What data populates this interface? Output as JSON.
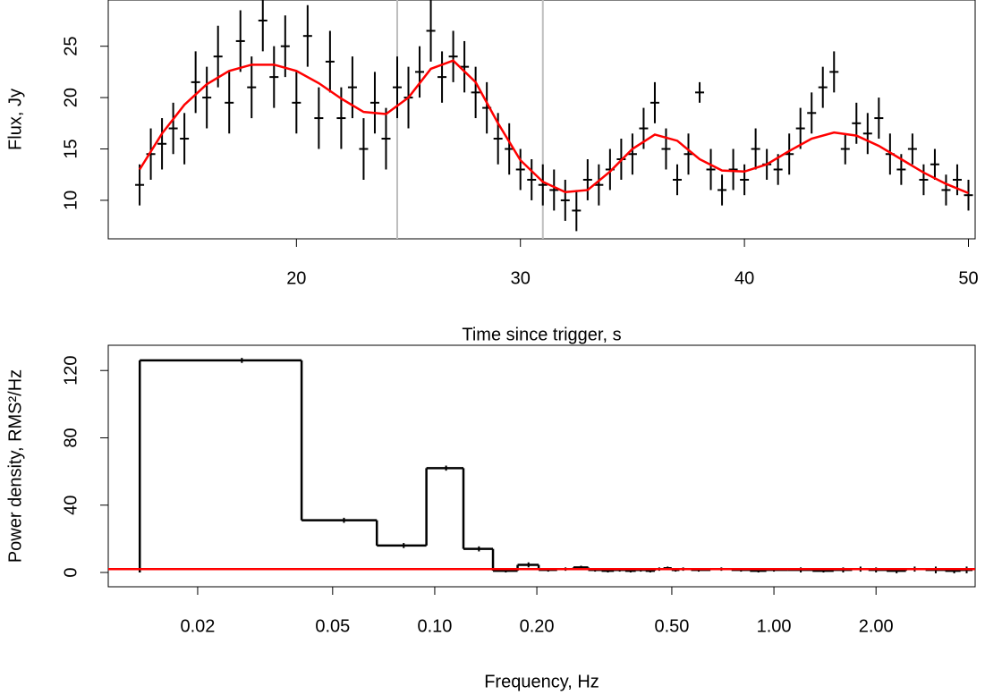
{
  "chart_data": [
    {
      "type": "scatter",
      "x_label": "Time since trigger, s",
      "y_label": "Flux, Jy",
      "x": [
        13,
        13.5,
        14,
        14.5,
        15,
        15.5,
        16,
        16.5,
        17,
        17.5,
        18,
        18.5,
        19,
        19.5,
        20,
        20.5,
        21,
        21.5,
        22,
        22.5,
        23,
        23.5,
        24,
        24.5,
        25,
        25.5,
        26,
        26.5,
        27,
        27.5,
        28,
        28.5,
        29,
        29.5,
        30,
        30.5,
        31,
        31.5,
        32,
        32.5,
        33,
        33.5,
        34,
        34.5,
        35,
        35.5,
        36,
        36.5,
        37,
        37.5,
        38,
        38.5,
        39,
        39.5,
        40,
        40.5,
        41,
        41.5,
        42,
        42.5,
        43,
        43.5,
        44,
        44.5,
        45,
        45.5,
        46,
        46.5,
        47,
        47.5,
        48,
        48.5,
        49,
        49.5,
        50
      ],
      "values": [
        11.5,
        14.5,
        15.5,
        17,
        16,
        21.5,
        20,
        24,
        19.5,
        25.5,
        21,
        27.5,
        22,
        25,
        19.5,
        26,
        18,
        23.5,
        18,
        21,
        15,
        19.5,
        16,
        21,
        20,
        22.5,
        26.5,
        22,
        24,
        23,
        20.5,
        19,
        16,
        15,
        13,
        12,
        11.5,
        11,
        10,
        9,
        12,
        11.5,
        13,
        14,
        14.5,
        17,
        19.5,
        15,
        12,
        14.5,
        20.5,
        13,
        11,
        13,
        12,
        15,
        13.5,
        13,
        14.5,
        17,
        18.5,
        21,
        22.5,
        15,
        17.5,
        16.5,
        18,
        14.5,
        13,
        15,
        12,
        13.5,
        11,
        12,
        10.5
      ],
      "errors": [
        2,
        2.5,
        2.5,
        2.5,
        2.5,
        3,
        3,
        3,
        3,
        3,
        3,
        3,
        3,
        3,
        3,
        3,
        3,
        3,
        3,
        3,
        3,
        3,
        3,
        3,
        3,
        2.5,
        3,
        2.5,
        2.5,
        2.5,
        2.5,
        2.5,
        2.5,
        2.5,
        2,
        2,
        2,
        2,
        2,
        2,
        2,
        2,
        2,
        2,
        2,
        2,
        2,
        2,
        1.5,
        2,
        1,
        2,
        1.5,
        2,
        1.5,
        2,
        1.5,
        1.5,
        2,
        2,
        2,
        2,
        2,
        1.5,
        2,
        2,
        2,
        2,
        1.5,
        1.5,
        1.5,
        1.5,
        1.5,
        1.5,
        1.5
      ],
      "color": "#000000",
      "model": {
        "x": [
          13,
          14,
          15,
          16,
          17,
          18,
          19,
          20,
          21,
          22,
          23,
          24,
          25,
          26,
          27,
          28,
          29,
          30,
          31,
          32,
          33,
          34,
          35,
          36,
          37,
          38,
          39,
          40,
          41,
          42,
          43,
          44,
          45,
          46,
          47,
          48,
          49,
          50
        ],
        "values": [
          13,
          16.5,
          19.3,
          21.3,
          22.6,
          23.2,
          23.2,
          22.6,
          21.4,
          19.9,
          18.6,
          18.4,
          20,
          22.8,
          23.6,
          21.5,
          17.5,
          13.9,
          11.8,
          10.8,
          11,
          12.8,
          15,
          16.4,
          15.8,
          14,
          12.9,
          12.8,
          13.5,
          14.8,
          16,
          16.6,
          16.3,
          15.3,
          14,
          12.7,
          11.6,
          10.7
        ],
        "color": "#ff0000"
      },
      "vlines": [
        24.5,
        31.0
      ],
      "vline_color": "#bebebe",
      "xlim": [
        11.6,
        50.3
      ],
      "ylim": [
        6.25,
        29.5
      ],
      "xticks": [
        20,
        30,
        40,
        50
      ],
      "yticks": [
        10,
        15,
        20,
        25
      ]
    },
    {
      "type": "step",
      "x_label": "Frequency, Hz",
      "y_label": "Power density, RMS²/Hz",
      "log_x": true,
      "x": [
        0.027,
        0.054,
        0.081,
        0.108,
        0.135,
        0.162,
        0.189,
        0.216,
        0.243,
        0.27,
        0.297,
        0.324,
        0.351,
        0.378,
        0.405,
        0.432,
        0.459,
        0.486,
        0.513,
        0.54,
        0.6,
        0.7,
        0.8,
        0.9,
        1.0,
        1.2,
        1.4,
        1.6,
        1.8,
        2.0,
        2.3,
        2.6,
        3.0,
        3.4,
        3.7
      ],
      "values": [
        126,
        31,
        16,
        62,
        14,
        1,
        4.5,
        1.5,
        2,
        3,
        1.5,
        1,
        1.5,
        1,
        1.5,
        1,
        2,
        2.5,
        1.5,
        2,
        1.5,
        2,
        1.5,
        1,
        1.5,
        1.5,
        1,
        1.5,
        2,
        1.5,
        1,
        2,
        1.5,
        1,
        1.5
      ],
      "errors": [
        1.5,
        1.5,
        1.5,
        1.5,
        1.5,
        1,
        1.5,
        1,
        1,
        1,
        1,
        1,
        1,
        1,
        1,
        1,
        1,
        1,
        1,
        1,
        1,
        1,
        1,
        1,
        1,
        1.5,
        1,
        1.5,
        1.5,
        1.5,
        1.5,
        1.5,
        2,
        1.5,
        2
      ],
      "color": "#000000",
      "hline": 2,
      "hline_color": "#ff0000",
      "xlim": [
        0.0109,
        3.92
      ],
      "ylim": [
        -8.5,
        135
      ],
      "xticks": [
        0.02,
        0.05,
        {
          "value": 0.1,
          "label": "0.10"
        },
        {
          "value": 0.2,
          "label": "0.20"
        },
        {
          "value": 0.5,
          "label": "0.50"
        },
        {
          "value": 1,
          "label": "1.00"
        },
        {
          "value": 2,
          "label": "2.00"
        }
      ],
      "yticks": [
        0,
        40,
        80,
        120
      ]
    }
  ]
}
